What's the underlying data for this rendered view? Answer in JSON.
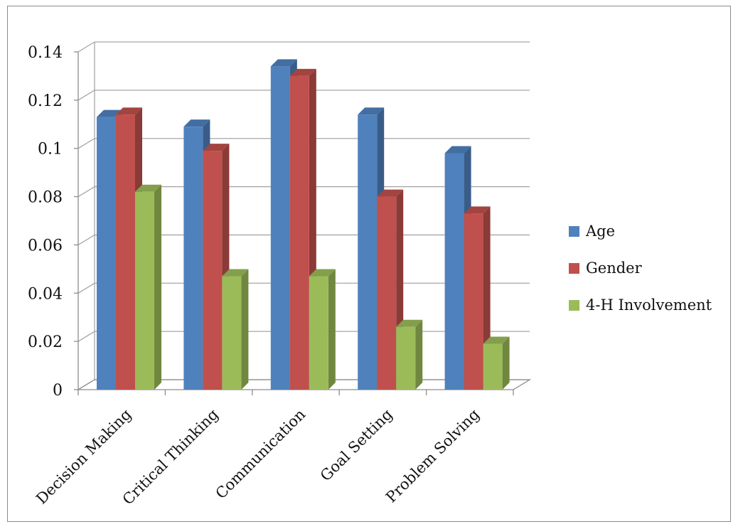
{
  "chart_data": {
    "type": "bar",
    "categories": [
      "Decision Making",
      "Critical Thinking",
      "Communication",
      "Goal Setting",
      "Problem Solving"
    ],
    "series": [
      {
        "name": "Age",
        "values": [
          0.113,
          0.109,
          0.134,
          0.114,
          0.098
        ],
        "color": "#4f81bd"
      },
      {
        "name": "Gender",
        "values": [
          0.114,
          0.099,
          0.13,
          0.08,
          0.073
        ],
        "color": "#c0504d"
      },
      {
        "name": "4-H Involvement",
        "values": [
          0.082,
          0.047,
          0.047,
          0.026,
          0.019
        ],
        "color": "#9bbb59"
      }
    ],
    "yticks": [
      "0",
      "0.02",
      "0.04",
      "0.06",
      "0.08",
      "0.1",
      "0.12",
      "0.14"
    ],
    "ylim": [
      0,
      0.14
    ],
    "grid": true,
    "legend_position": "right",
    "style": "3d-clustered-column"
  }
}
